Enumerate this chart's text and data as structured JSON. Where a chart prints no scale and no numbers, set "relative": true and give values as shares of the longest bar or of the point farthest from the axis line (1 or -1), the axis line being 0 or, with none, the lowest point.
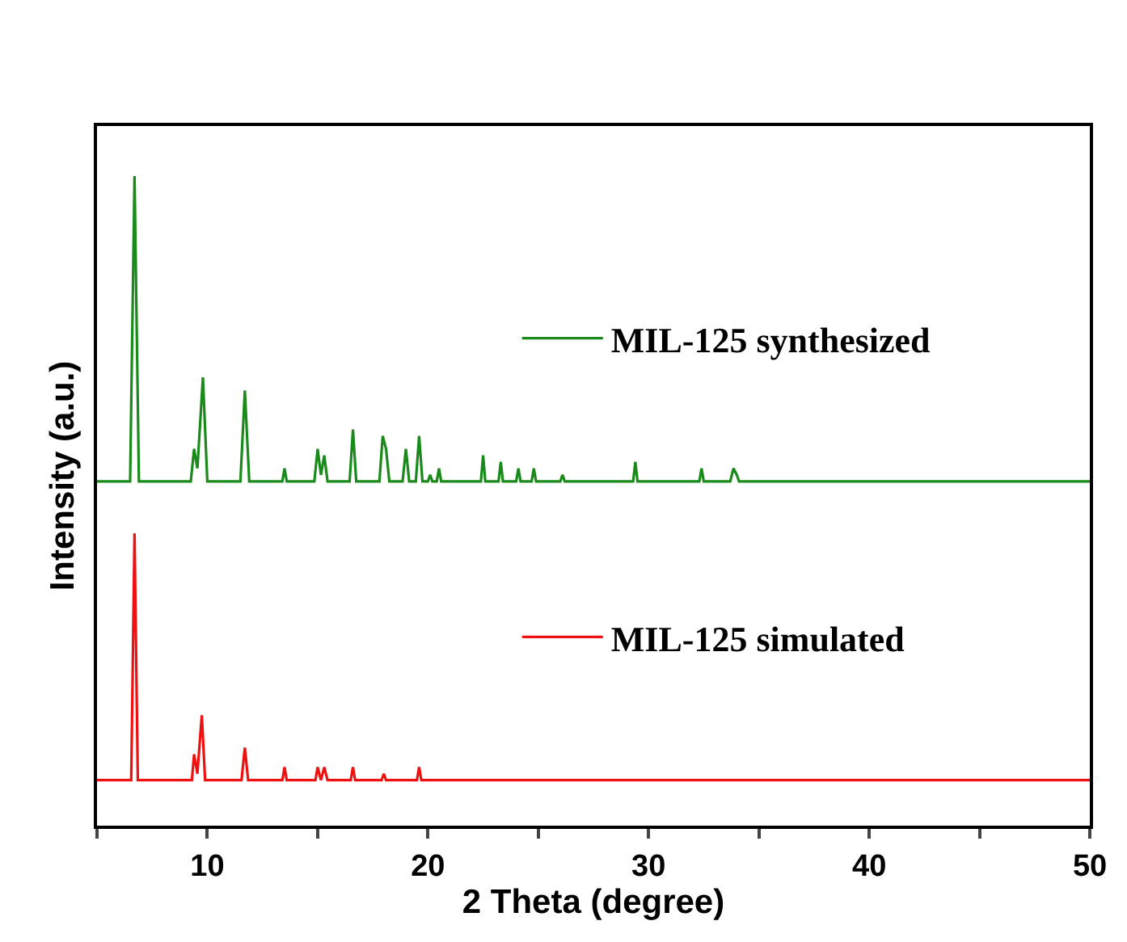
{
  "chart_data": {
    "type": "line",
    "relative": true,
    "xlabel": "2 Theta (degree)",
    "ylabel": "Intensity (a.u.)",
    "xlim": [
      5,
      50
    ],
    "xticks": [
      {
        "value": 5,
        "label": null
      },
      10,
      {
        "value": 15,
        "label": null
      },
      20,
      {
        "value": 25,
        "label": null
      },
      30,
      {
        "value": 35,
        "label": null
      },
      40,
      {
        "value": 45,
        "label": null
      },
      50
    ],
    "tick_labels": "x",
    "legend": "right",
    "marker": "none",
    "line_style": "solid",
    "series": [
      {
        "name": "MIL-125 synthesized",
        "color": "#1a8a1a",
        "x": [
          5,
          6.5,
          6.7,
          6.9,
          9.25,
          9.4,
          9.55,
          9.8,
          10.0,
          11.5,
          11.7,
          11.9,
          13.4,
          13.5,
          13.6,
          14.85,
          15.0,
          15.15,
          15.3,
          15.45,
          16.45,
          16.6,
          16.75,
          17.8,
          17.95,
          18.1,
          18.25,
          18.85,
          19.0,
          19.15,
          19.45,
          19.6,
          19.75,
          20.0,
          20.1,
          20.2,
          20.4,
          20.5,
          20.6,
          22.4,
          22.5,
          22.6,
          23.2,
          23.3,
          23.4,
          24.0,
          24.1,
          24.2,
          24.7,
          24.8,
          24.9,
          26.0,
          26.1,
          26.2,
          29.3,
          29.4,
          29.5,
          32.3,
          32.4,
          32.5,
          33.7,
          33.85,
          34.0,
          34.1,
          50
        ],
        "values": [
          0.53,
          0.53,
          1.0,
          0.53,
          0.53,
          0.58,
          0.55,
          0.69,
          0.53,
          0.53,
          0.67,
          0.53,
          0.53,
          0.55,
          0.53,
          0.53,
          0.58,
          0.54,
          0.57,
          0.53,
          0.53,
          0.61,
          0.53,
          0.53,
          0.6,
          0.58,
          0.53,
          0.53,
          0.58,
          0.53,
          0.53,
          0.6,
          0.53,
          0.53,
          0.54,
          0.53,
          0.53,
          0.55,
          0.53,
          0.53,
          0.57,
          0.53,
          0.53,
          0.56,
          0.53,
          0.53,
          0.55,
          0.53,
          0.53,
          0.55,
          0.53,
          0.53,
          0.54,
          0.53,
          0.53,
          0.56,
          0.53,
          0.53,
          0.55,
          0.53,
          0.53,
          0.55,
          0.54,
          0.53,
          0.53
        ]
      },
      {
        "name": "MIL-125 simulated",
        "color": "#ee1111",
        "x": [
          5,
          6.55,
          6.7,
          6.85,
          9.3,
          9.4,
          9.55,
          9.75,
          9.9,
          11.55,
          11.7,
          11.85,
          13.4,
          13.5,
          13.6,
          14.9,
          15.0,
          15.15,
          15.3,
          15.45,
          16.5,
          16.6,
          16.7,
          17.9,
          18.0,
          18.1,
          19.5,
          19.6,
          19.7,
          50
        ],
        "values": [
          0.07,
          0.07,
          0.45,
          0.07,
          0.07,
          0.11,
          0.08,
          0.17,
          0.07,
          0.07,
          0.12,
          0.07,
          0.07,
          0.09,
          0.07,
          0.07,
          0.09,
          0.07,
          0.09,
          0.07,
          0.07,
          0.09,
          0.07,
          0.07,
          0.08,
          0.07,
          0.07,
          0.09,
          0.07,
          0.07
        ]
      }
    ]
  }
}
